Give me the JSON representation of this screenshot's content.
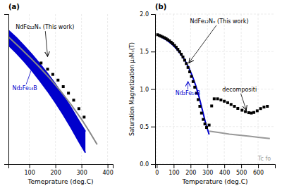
{
  "chart_data": [
    {
      "type": "line",
      "title": "(a)",
      "xlabel": "Temeprature (deg.C)",
      "xlim": [
        20,
        420
      ],
      "xticks": [
        100,
        200,
        300,
        400
      ],
      "ylim": [
        0.18,
        1.1
      ],
      "yticks": [],
      "tick_labels": "x",
      "grid": true,
      "series": [
        {
          "type": "area",
          "color": "#0000cc",
          "x": [
            20,
            50,
            80,
            110,
            140,
            170,
            200,
            230,
            260,
            290,
            315
          ],
          "upper": [
            1.0,
            0.955,
            0.905,
            0.852,
            0.795,
            0.735,
            0.67,
            0.6,
            0.525,
            0.445,
            0.38
          ],
          "lower": [
            0.91,
            0.862,
            0.81,
            0.754,
            0.692,
            0.628,
            0.558,
            0.484,
            0.404,
            0.318,
            0.25
          ]
        },
        {
          "type": "line",
          "color": "#888888",
          "x": [
            20,
            60,
            100,
            140,
            180,
            220,
            260,
            300,
            330,
            360
          ],
          "values": [
            0.96,
            0.9,
            0.838,
            0.773,
            0.703,
            0.628,
            0.545,
            0.455,
            0.38,
            0.3
          ]
        },
        {
          "type": "scatter",
          "color": "#000000",
          "marker": "square",
          "x": [
            145,
            170,
            190,
            210,
            230,
            250,
            270,
            290,
            310
          ],
          "values": [
            0.8,
            0.762,
            0.73,
            0.695,
            0.655,
            0.615,
            0.572,
            0.52,
            0.468
          ]
        }
      ],
      "annotations": [
        {
          "text": "NdFe₁₂Nₓ (This work)",
          "xy": [
            170,
            0.84
          ],
          "xytext": [
            160,
            1.0
          ],
          "color": "#000000"
        },
        {
          "text": "Nd₂Fe₁₄B",
          "xy": [
            115,
            0.79
          ],
          "xytext": [
            35,
            0.635
          ],
          "color": "#0000cc"
        }
      ]
    },
    {
      "type": "line",
      "title": "(b)",
      "xlabel": "Temperature (deg.C)",
      "ylabel": "Saturation Magnetization μ₀Mₛ(T)",
      "xlim": [
        -10,
        700
      ],
      "xticks": [
        0,
        100,
        200,
        300,
        400,
        500,
        600
      ],
      "ylim": [
        0.0,
        2.0
      ],
      "yticks": [
        {
          "value": 0.0,
          "label": "0.0"
        },
        0.5,
        {
          "value": 1.0,
          "label": "1.0"
        },
        1.5,
        {
          "value": 2.0,
          "label": "2.0"
        }
      ],
      "grid": true,
      "series": [
        {
          "type": "line",
          "color": "#0000cc",
          "x": [
            0,
            15,
            30,
            50,
            70,
            90,
            110,
            130,
            150,
            170,
            190,
            210,
            230,
            250,
            270,
            290,
            310
          ],
          "values": [
            1.725,
            1.71,
            1.692,
            1.665,
            1.635,
            1.598,
            1.554,
            1.502,
            1.442,
            1.37,
            1.283,
            1.178,
            1.052,
            0.9,
            0.72,
            0.54,
            0.395
          ]
        },
        {
          "type": "line",
          "color": "#999999",
          "x": [
            310,
            370,
            430,
            490,
            550,
            610,
            670
          ],
          "values": [
            0.44,
            0.42,
            0.4,
            0.385,
            0.37,
            0.355,
            0.34
          ]
        },
        {
          "type": "scatter",
          "color": "#000000",
          "marker": "square",
          "x": [
            5,
            15,
            25,
            35,
            45,
            55,
            65,
            75,
            85,
            95,
            105,
            115,
            125,
            135,
            145,
            155,
            165,
            175,
            185,
            195,
            205,
            215,
            225,
            235,
            245,
            255,
            265,
            275,
            285,
            295,
            310,
            325,
            340,
            360,
            380,
            400,
            420,
            440,
            460,
            480,
            505,
            525,
            545,
            560,
            575,
            595,
            615,
            635,
            655
          ],
          "values": [
            1.725,
            1.715,
            1.705,
            1.695,
            1.685,
            1.672,
            1.658,
            1.643,
            1.625,
            1.605,
            1.582,
            1.558,
            1.53,
            1.5,
            1.465,
            1.428,
            1.385,
            1.34,
            1.288,
            1.23,
            1.168,
            1.1,
            1.025,
            0.945,
            0.86,
            0.77,
            0.68,
            0.595,
            0.535,
            0.488,
            0.52,
            0.775,
            0.87,
            0.87,
            0.855,
            0.838,
            0.818,
            0.795,
            0.77,
            0.742,
            0.718,
            0.7,
            0.685,
            0.68,
            0.688,
            0.71,
            0.74,
            0.76,
            0.77
          ]
        }
      ],
      "annotations": [
        {
          "text": "NdFe₁₂Nₓ (This work)",
          "xy": [
            190,
            1.35
          ],
          "xytext": [
            370,
            1.86
          ],
          "color": "#000000"
        },
        {
          "text": "Nd₂Fe₁₄B",
          "xy": [
            185,
            1.1
          ],
          "xytext": [
            110,
            0.92
          ],
          "color": "#0000cc"
        },
        {
          "text": "decompositi",
          "xy": [
            530,
            0.72
          ],
          "xytext": [
            490,
            0.95
          ],
          "color": "#000000"
        },
        {
          "text": "Tc fo",
          "xytext": [
            600,
            0.05
          ],
          "color": "#999999"
        }
      ]
    }
  ]
}
